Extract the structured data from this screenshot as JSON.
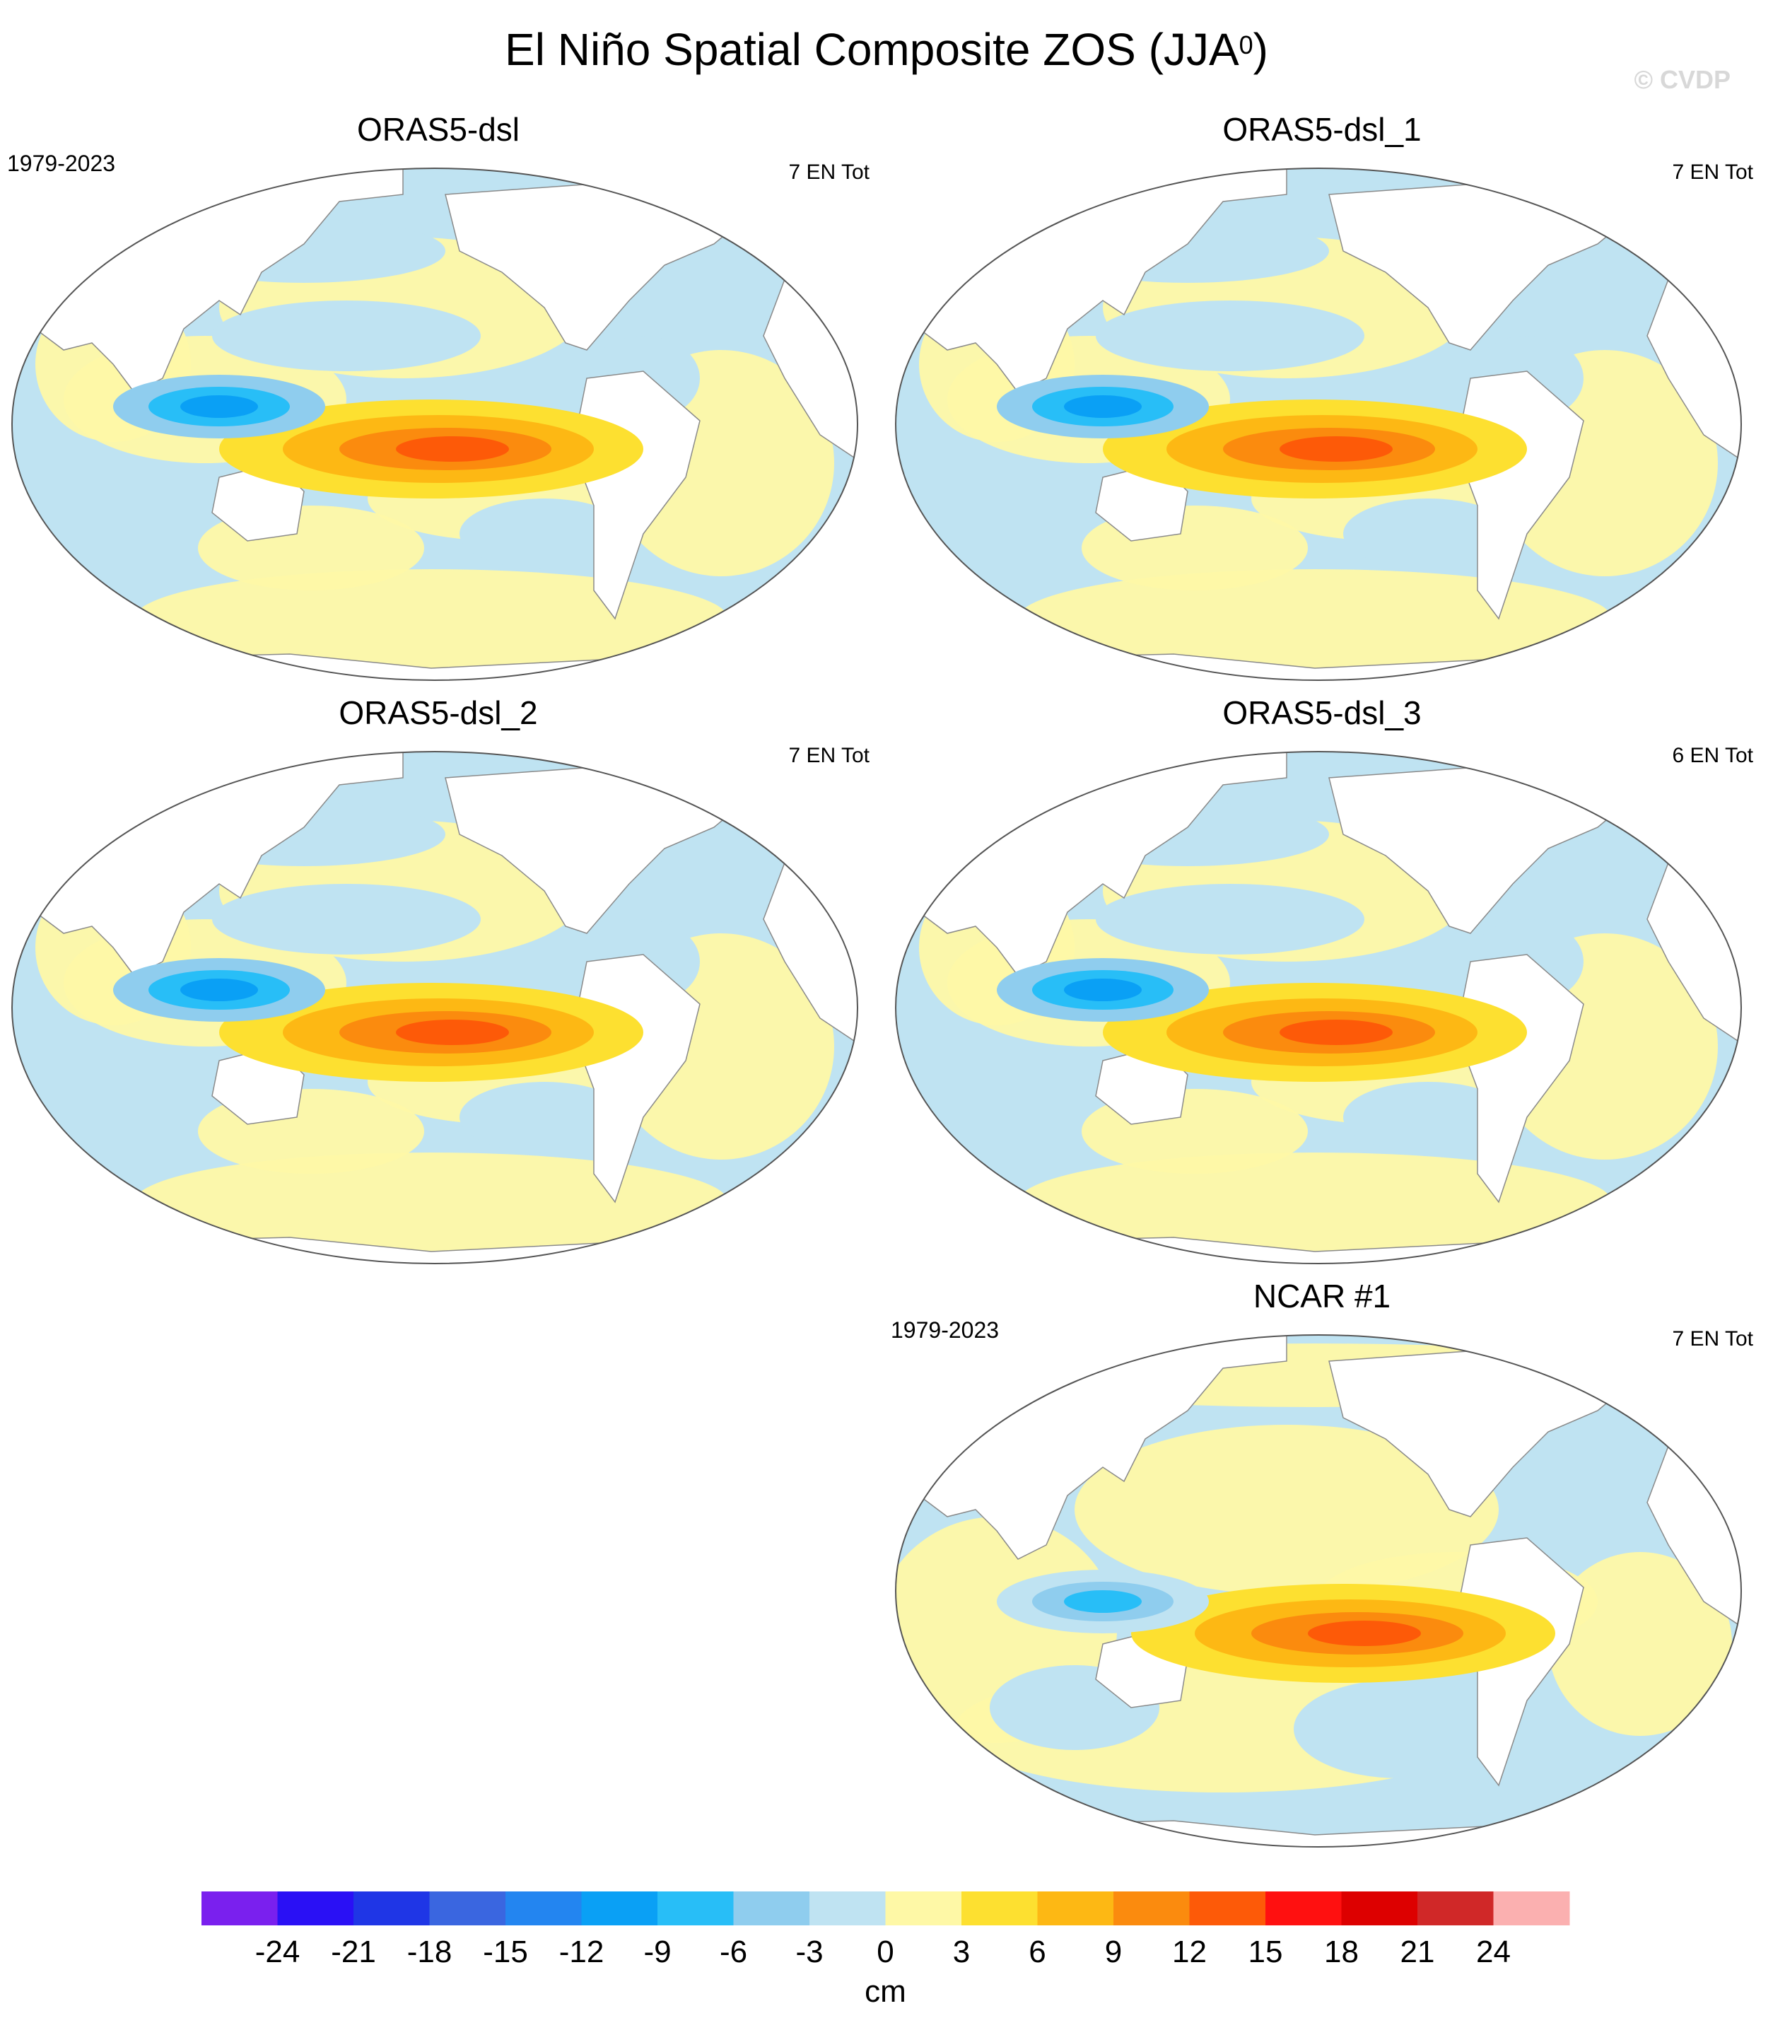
{
  "figure": {
    "title_main": "El Niño Spatial Composite ZOS (JJA",
    "title_sup": "0",
    "title_close": ")",
    "watermark": "© CVDP"
  },
  "chart_data": {
    "type": "heatmap",
    "projection": "Robinson-like world map, Pacific-centered",
    "panels": [
      {
        "name": "ORAS5-dsl",
        "period": "1979-2023",
        "count_label": "7 EN Tot",
        "composite_events": 7,
        "features": [
          {
            "region": "Eastern equatorial Pacific",
            "value_cm": 12
          },
          {
            "region": "Western tropical Pacific",
            "value_cm": -12
          },
          {
            "region": "Southern Ocean",
            "value_cm": 3
          }
        ]
      },
      {
        "name": "ORAS5-dsl_1",
        "period": "",
        "count_label": "7 EN Tot",
        "composite_events": 7,
        "features": [
          {
            "region": "Eastern equatorial Pacific",
            "value_cm": 12
          },
          {
            "region": "Western tropical Pacific",
            "value_cm": -12
          },
          {
            "region": "Southern Ocean",
            "value_cm": 3
          }
        ]
      },
      {
        "name": "ORAS5-dsl_2",
        "period": "",
        "count_label": "7 EN Tot",
        "composite_events": 7,
        "features": [
          {
            "region": "Eastern equatorial Pacific",
            "value_cm": 12
          },
          {
            "region": "Western tropical Pacific",
            "value_cm": -12
          },
          {
            "region": "Southern Ocean",
            "value_cm": 3
          }
        ]
      },
      {
        "name": "ORAS5-dsl_3",
        "period": "",
        "count_label": "6 EN Tot",
        "composite_events": 6,
        "features": [
          {
            "region": "Eastern equatorial Pacific",
            "value_cm": 12
          },
          {
            "region": "Western tropical Pacific",
            "value_cm": -12
          },
          {
            "region": "Southern Ocean",
            "value_cm": 3
          }
        ]
      },
      {
        "name": "NCAR #1",
        "period": "1979-2023",
        "count_label": "7 EN Tot",
        "composite_events": 7,
        "features": [
          {
            "region": "Eastern equatorial Pacific",
            "value_cm": 12
          },
          {
            "region": "Maritime Continent",
            "value_cm": -9
          },
          {
            "region": "Indian Ocean",
            "value_cm": 3
          }
        ]
      }
    ],
    "colorbar": {
      "unit": "cm",
      "tick_labels": [
        "-24",
        "-21",
        "-18",
        "-15",
        "-12",
        "-9",
        "-6",
        "-3",
        "0",
        "3",
        "6",
        "9",
        "12",
        "15",
        "18",
        "21",
        "24"
      ],
      "colors": [
        "#7a20ee",
        "#2a10f5",
        "#1f36e6",
        "#3a66e0",
        "#2385f0",
        "#0aa0f5",
        "#28bef7",
        "#8fcdee",
        "#bfe3f2",
        "#fef8a6",
        "#fde030",
        "#fdb814",
        "#fb8b0e",
        "#fd5a08",
        "#ff1010",
        "#dd0000",
        "#d02828",
        "#fbb0b0"
      ]
    }
  }
}
